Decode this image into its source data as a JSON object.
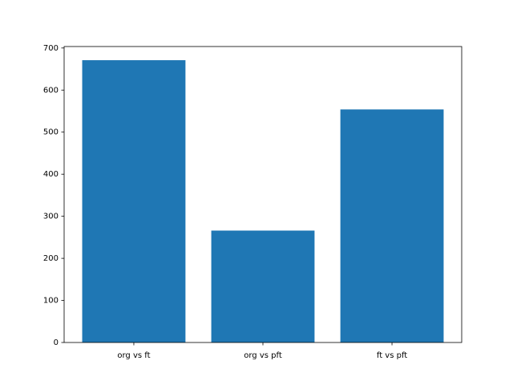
{
  "chart_data": {
    "type": "bar",
    "categories": [
      "org vs ft",
      "org vs pft",
      "ft vs pft"
    ],
    "values": [
      671,
      266,
      554
    ],
    "color": "#1f77b4",
    "ylim": [
      0,
      703.5
    ],
    "yticks": [
      0,
      100,
      200,
      300,
      400,
      500,
      600,
      700
    ]
  }
}
